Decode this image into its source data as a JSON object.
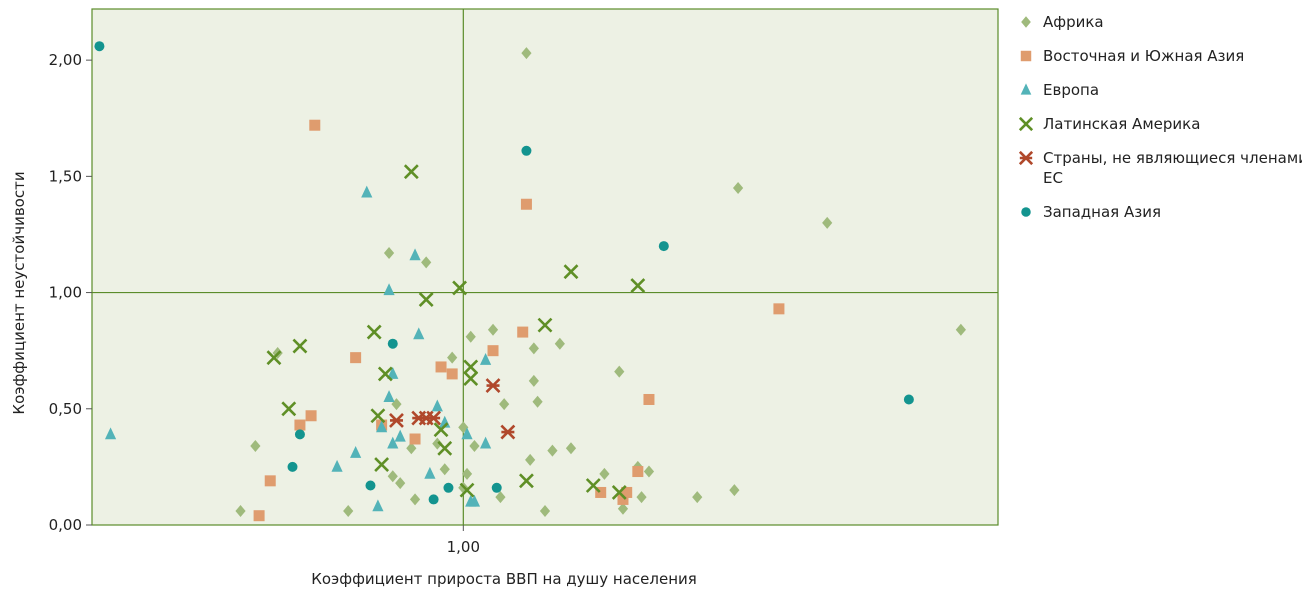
{
  "chart_data": {
    "type": "scatter",
    "xlabel": "Коэффициент прироста ВВП на душу населения",
    "ylabel": "Коэффициент неустойчивости",
    "xlim": [
      0.0,
      2.44
    ],
    "ylim": [
      0.0,
      2.22
    ],
    "x_ticks": [
      {
        "value": 1.0,
        "label": "1,00"
      }
    ],
    "y_ticks": [
      {
        "value": 0.0,
        "label": "0,00"
      },
      {
        "value": 0.5,
        "label": "0,50"
      },
      {
        "value": 1.0,
        "label": "1,00"
      },
      {
        "value": 1.5,
        "label": "1,50"
      },
      {
        "value": 2.0,
        "label": "2,00"
      }
    ],
    "reference_lines": {
      "x": 1.0,
      "y": 1.0
    },
    "legend_position": "right",
    "plot_background": "#edf1e4",
    "frame_color": "#5b8c2a",
    "series": [
      {
        "name": "Африка",
        "marker": "diamond",
        "color": "#9fba7c",
        "points": [
          [
            0.4,
            0.06
          ],
          [
            0.44,
            0.34
          ],
          [
            0.5,
            0.74
          ],
          [
            0.69,
            0.06
          ],
          [
            0.8,
            1.17
          ],
          [
            0.81,
            0.21
          ],
          [
            0.82,
            0.52
          ],
          [
            0.83,
            0.18
          ],
          [
            0.86,
            0.33
          ],
          [
            0.87,
            0.11
          ],
          [
            0.9,
            1.13
          ],
          [
            0.93,
            0.35
          ],
          [
            0.95,
            0.24
          ],
          [
            0.97,
            0.72
          ],
          [
            1.0,
            0.42
          ],
          [
            1.0,
            0.16
          ],
          [
            1.01,
            0.22
          ],
          [
            1.02,
            0.81
          ],
          [
            1.03,
            0.34
          ],
          [
            1.08,
            0.84
          ],
          [
            1.1,
            0.12
          ],
          [
            1.11,
            0.52
          ],
          [
            1.17,
            2.03
          ],
          [
            1.18,
            0.28
          ],
          [
            1.19,
            0.76
          ],
          [
            1.19,
            0.62
          ],
          [
            1.2,
            0.53
          ],
          [
            1.22,
            0.06
          ],
          [
            1.24,
            0.32
          ],
          [
            1.26,
            0.78
          ],
          [
            1.29,
            0.33
          ],
          [
            1.38,
            0.22
          ],
          [
            1.42,
            0.66
          ],
          [
            1.43,
            0.07
          ],
          [
            1.47,
            0.25
          ],
          [
            1.48,
            0.12
          ],
          [
            1.5,
            0.23
          ],
          [
            1.63,
            0.12
          ],
          [
            1.73,
            0.15
          ],
          [
            1.74,
            1.45
          ],
          [
            1.98,
            1.3
          ],
          [
            2.34,
            0.84
          ]
        ]
      },
      {
        "name": "Восточная и Южная Азия",
        "marker": "square",
        "color": "#df9c6e",
        "points": [
          [
            0.45,
            0.04
          ],
          [
            0.48,
            0.19
          ],
          [
            0.56,
            0.43
          ],
          [
            0.59,
            0.47
          ],
          [
            0.6,
            1.72
          ],
          [
            0.71,
            0.72
          ],
          [
            0.78,
            0.43
          ],
          [
            0.87,
            0.37
          ],
          [
            0.94,
            0.68
          ],
          [
            0.97,
            0.65
          ],
          [
            1.08,
            0.75
          ],
          [
            1.16,
            0.83
          ],
          [
            1.17,
            1.38
          ],
          [
            1.37,
            0.14
          ],
          [
            1.43,
            0.11
          ],
          [
            1.44,
            0.14
          ],
          [
            1.47,
            0.23
          ],
          [
            1.5,
            0.54
          ],
          [
            1.85,
            0.93
          ]
        ]
      },
      {
        "name": "Европа",
        "marker": "triangle",
        "color": "#53b3b8",
        "points": [
          [
            0.05,
            0.39
          ],
          [
            0.66,
            0.25
          ],
          [
            0.71,
            0.31
          ],
          [
            0.74,
            1.43
          ],
          [
            0.77,
            0.08
          ],
          [
            0.78,
            0.42
          ],
          [
            0.8,
            1.01
          ],
          [
            0.8,
            0.55
          ],
          [
            0.81,
            0.65
          ],
          [
            0.81,
            0.35
          ],
          [
            0.83,
            0.38
          ],
          [
            0.87,
            1.16
          ],
          [
            0.88,
            0.82
          ],
          [
            0.91,
            0.22
          ],
          [
            0.93,
            0.51
          ],
          [
            0.95,
            0.44
          ],
          [
            1.01,
            0.39
          ],
          [
            1.02,
            0.1
          ],
          [
            1.03,
            0.1
          ],
          [
            1.06,
            0.35
          ],
          [
            1.06,
            0.71
          ]
        ]
      },
      {
        "name": "Латинская Америка",
        "marker": "x",
        "color": "#5f8f26",
        "points": [
          [
            0.49,
            0.72
          ],
          [
            0.53,
            0.5
          ],
          [
            0.56,
            0.77
          ],
          [
            0.76,
            0.83
          ],
          [
            0.77,
            0.47
          ],
          [
            0.78,
            0.26
          ],
          [
            0.79,
            0.65
          ],
          [
            0.86,
            1.52
          ],
          [
            0.9,
            0.97
          ],
          [
            0.94,
            0.41
          ],
          [
            0.95,
            0.33
          ],
          [
            0.99,
            1.02
          ],
          [
            1.01,
            0.15
          ],
          [
            1.02,
            0.63
          ],
          [
            1.02,
            0.68
          ],
          [
            1.17,
            0.19
          ],
          [
            1.22,
            0.86
          ],
          [
            1.29,
            1.09
          ],
          [
            1.35,
            0.17
          ],
          [
            1.42,
            0.14
          ],
          [
            1.47,
            1.03
          ]
        ]
      },
      {
        "name": "Страны, не являющиеся членами ЕС",
        "marker": "asterisk",
        "color": "#b0482b",
        "points": [
          [
            0.82,
            0.45
          ],
          [
            0.88,
            0.46
          ],
          [
            0.9,
            0.46
          ],
          [
            0.92,
            0.46
          ],
          [
            1.08,
            0.6
          ],
          [
            1.12,
            0.4
          ]
        ]
      },
      {
        "name": "Западная Азия",
        "marker": "circle",
        "color": "#13948f",
        "points": [
          [
            0.02,
            2.06
          ],
          [
            0.54,
            0.25
          ],
          [
            0.56,
            0.39
          ],
          [
            0.75,
            0.17
          ],
          [
            0.81,
            0.78
          ],
          [
            0.92,
            0.11
          ],
          [
            0.96,
            0.16
          ],
          [
            1.09,
            0.16
          ],
          [
            1.17,
            1.61
          ],
          [
            1.54,
            1.2
          ],
          [
            2.2,
            0.54
          ]
        ]
      }
    ]
  }
}
